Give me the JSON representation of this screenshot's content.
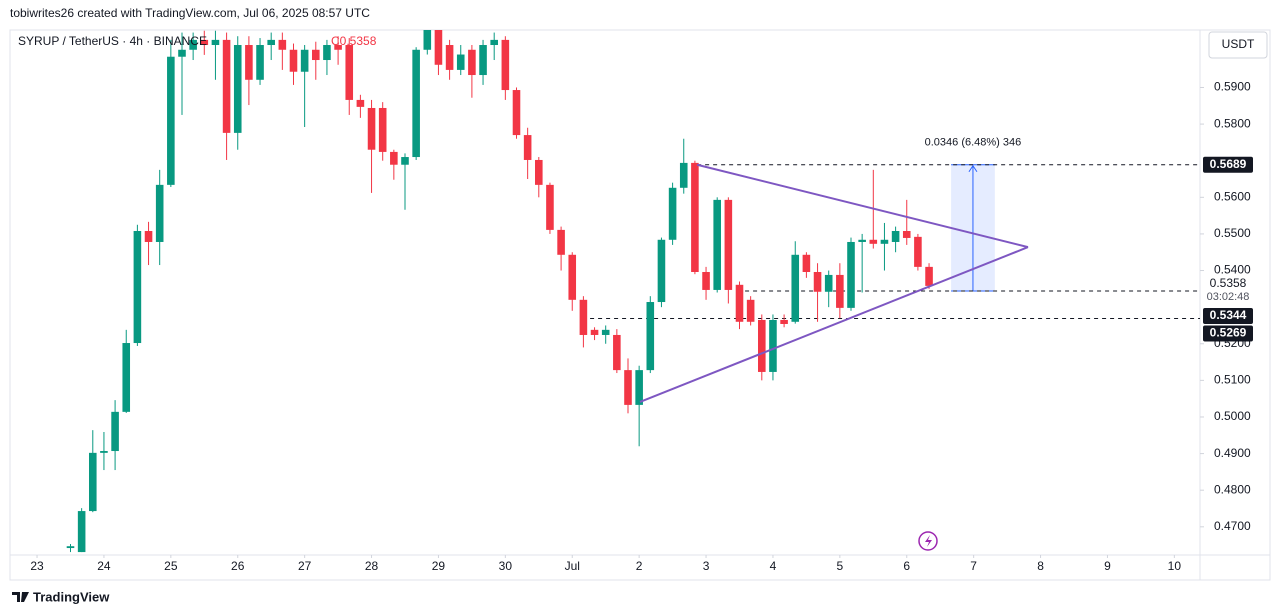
{
  "header": "tobiwrites26 created with TradingView.com, Jul 06, 2025 08:57 UTC",
  "footer": "TradingView",
  "chart_data": {
    "type": "candlestick",
    "title": "SYRUP / TetherUS · 4h · BINANCE",
    "last_close_text": "C0.5358",
    "currency": "USDT",
    "up_color": "#089981",
    "down_color": "#f23645",
    "grid": false,
    "x": [
      12,
      16,
      20,
      24,
      28,
      32,
      36,
      40,
      44,
      48,
      52,
      56,
      60,
      64,
      68,
      72,
      76,
      80,
      84,
      88,
      92,
      96,
      100,
      104,
      108,
      112,
      116,
      120,
      124,
      128,
      132,
      136,
      140,
      144,
      148,
      152,
      156,
      160,
      164,
      168,
      172,
      176,
      180,
      184,
      188,
      192,
      196,
      200,
      204,
      208,
      212,
      216,
      220,
      224,
      228,
      232,
      236,
      240,
      244,
      248,
      252,
      256,
      260,
      264,
      268,
      272,
      276,
      280,
      284,
      288,
      292,
      296,
      300,
      304,
      308,
      312,
      316,
      320
    ],
    "open": [
      0.4642,
      0.4631,
      0.4743,
      0.4902,
      0.4907,
      0.5014,
      0.5202,
      0.5508,
      0.5478,
      0.5634,
      0.5984,
      0.6003,
      0.603,
      0.6016,
      0.603,
      0.5776,
      0.6016,
      0.5921,
      0.6016,
      0.603,
      0.6003,
      0.5943,
      0.6003,
      0.5975,
      0.6016,
      0.6016,
      0.5866,
      0.5844,
      0.5844,
      0.5724,
      0.5689,
      0.571,
      0.6003,
      0.6057,
      0.6016,
      0.5948,
      0.6003,
      0.5934,
      0.6016,
      0.603,
      0.5893,
      0.577,
      0.5702,
      0.5634,
      0.5511,
      0.5443,
      0.532,
      0.5238,
      0.5224,
      0.5224,
      0.5128,
      0.5033,
      0.5128,
      0.5314,
      0.5484,
      0.5626,
      0.5694,
      0.5396,
      0.5347,
      0.5593,
      0.5361,
      0.532,
      0.5265,
      0.5123,
      0.5265,
      0.526,
      0.5443,
      0.5396,
      0.5342,
      0.5388,
      0.5298,
      0.5478,
      0.5484,
      0.5473,
      0.5478,
      0.5508,
      0.5492,
      0.541
    ],
    "high": [
      0.4653,
      0.4751,
      0.4964,
      0.4959,
      0.5046,
      0.5238,
      0.5525,
      0.5533,
      0.5675,
      0.603,
      0.605,
      0.605,
      0.6055,
      0.6055,
      0.605,
      0.604,
      0.604,
      0.6035,
      0.605,
      0.605,
      0.602,
      0.6016,
      0.6025,
      0.603,
      0.604,
      0.6035,
      0.588,
      0.5866,
      0.586,
      0.573,
      0.572,
      0.601,
      0.606,
      0.606,
      0.603,
      0.6016,
      0.6016,
      0.603,
      0.605,
      0.604,
      0.59,
      0.579,
      0.571,
      0.564,
      0.552,
      0.545,
      0.533,
      0.5245,
      0.525,
      0.524,
      0.516,
      0.514,
      0.533,
      0.549,
      0.564,
      0.576,
      0.57,
      0.541,
      0.56,
      0.56,
      0.537,
      0.533,
      0.528,
      0.528,
      0.528,
      0.548,
      0.545,
      0.542,
      0.54,
      0.542,
      0.549,
      0.55,
      0.5675,
      0.553,
      0.552,
      0.5593,
      0.55,
      0.542
    ],
    "low": [
      0.4631,
      0.4631,
      0.474,
      0.4855,
      0.4855,
      0.5011,
      0.5194,
      0.5415,
      0.5415,
      0.5628,
      0.5825,
      0.5975,
      0.5989,
      0.5921,
      0.5702,
      0.573,
      0.5852,
      0.5907,
      0.5975,
      0.5948,
      0.5907,
      0.5792,
      0.5921,
      0.5934,
      0.5962,
      0.5825,
      0.5817,
      0.5612,
      0.57,
      0.5648,
      0.5566,
      0.5702,
      0.599,
      0.5934,
      0.5921,
      0.5934,
      0.5872,
      0.5907,
      0.5975,
      0.5866,
      0.576,
      0.565,
      0.56,
      0.55,
      0.54,
      0.529,
      0.519,
      0.521,
      0.52,
      0.512,
      0.501,
      0.492,
      0.512,
      0.53,
      0.547,
      0.561,
      0.539,
      0.532,
      0.534,
      0.531,
      0.524,
      0.525,
      0.51,
      0.51,
      0.5245,
      0.5255,
      0.538,
      0.526,
      0.53,
      0.527,
      0.529,
      0.534,
      0.546,
      0.54,
      0.545,
      0.547,
      0.54,
      0.535
    ],
    "close": [
      0.4647,
      0.4743,
      0.4902,
      0.4907,
      0.5014,
      0.5202,
      0.5508,
      0.5478,
      0.5634,
      0.5984,
      0.6003,
      0.603,
      0.6016,
      0.603,
      0.5776,
      0.6016,
      0.5921,
      0.6016,
      0.603,
      0.6003,
      0.5943,
      0.6003,
      0.5975,
      0.6016,
      0.6003,
      0.5866,
      0.5847,
      0.573,
      0.5724,
      0.5689,
      0.571,
      0.6003,
      0.6057,
      0.5962,
      0.5948,
      0.599,
      0.5934,
      0.6016,
      0.603,
      0.5893,
      0.577,
      0.5702,
      0.5634,
      0.5511,
      0.5443,
      0.532,
      0.5224,
      0.5224,
      0.5238,
      0.5128,
      0.5033,
      0.5128,
      0.5314,
      0.5484,
      0.5626,
      0.5694,
      0.5396,
      0.5347,
      0.5593,
      0.5347,
      0.526,
      0.526,
      0.5123,
      0.5265,
      0.5254,
      0.5443,
      0.5396,
      0.5342,
      0.5388,
      0.5298,
      0.5478,
      0.5484,
      0.5473,
      0.5484,
      0.5508,
      0.5489,
      0.541,
      0.5358
    ],
    "xlim": [
      -9.7,
      417.2
    ],
    "ylim": [
      0.4623,
      0.6057
    ],
    "xticks": [
      {
        "value": 0,
        "label": "23"
      },
      {
        "value": 24,
        "label": "24"
      },
      {
        "value": 48,
        "label": "25"
      },
      {
        "value": 72,
        "label": "26"
      },
      {
        "value": 96,
        "label": "27"
      },
      {
        "value": 120,
        "label": "28"
      },
      {
        "value": 144,
        "label": "29"
      },
      {
        "value": 168,
        "label": "30"
      },
      {
        "value": 192,
        "label": "Jul"
      },
      {
        "value": 216,
        "label": "2"
      },
      {
        "value": 240,
        "label": "3"
      },
      {
        "value": 264,
        "label": "4"
      },
      {
        "value": 288,
        "label": "5"
      },
      {
        "value": 312,
        "label": "6"
      },
      {
        "value": 336,
        "label": "7"
      },
      {
        "value": 360,
        "label": "8"
      },
      {
        "value": 384,
        "label": "9"
      },
      {
        "value": 408,
        "label": "10"
      }
    ],
    "yticks": [
      {
        "value": 0.47,
        "label": "0.4700"
      },
      {
        "value": 0.48,
        "label": "0.4800"
      },
      {
        "value": 0.49,
        "label": "0.4900"
      },
      {
        "value": 0.5,
        "label": "0.5000"
      },
      {
        "value": 0.51,
        "label": "0.5100"
      },
      {
        "value": 0.52,
        "label": "0.5200"
      },
      {
        "value": 0.54,
        "label": "0.5400"
      },
      {
        "value": 0.55,
        "label": "0.5500"
      },
      {
        "value": 0.56,
        "label": "0.5600"
      },
      {
        "value": 0.58,
        "label": "0.5800"
      },
      {
        "value": 0.59,
        "label": "0.5900"
      }
    ],
    "trendline_color": "#7e57c2",
    "trendlines": [
      {
        "x": [
          236.8,
          355.5
        ],
        "y": [
          0.5689,
          0.5464
        ]
      },
      {
        "x": [
          216.3,
          355.5
        ],
        "y": [
          0.5041,
          0.5464
        ]
      }
    ],
    "levels": [
      {
        "value": 0.5689,
        "from": 236.8
      },
      {
        "value": 0.5344,
        "from": 254
      },
      {
        "value": 0.5269,
        "from": 198.4
      }
    ],
    "price_labels": [
      {
        "value": 0.5689,
        "label": "0.5689",
        "boxed": true
      },
      {
        "value": 0.5358,
        "label": "0.5358",
        "boxed": false
      },
      {
        "value": 0.5344,
        "label": "0.5344",
        "boxed": true
      },
      {
        "value": 0.5269,
        "label": "0.5269",
        "boxed": true
      }
    ],
    "countdown": "03:02:48",
    "measure": {
      "x": [
        327.9,
        343.6
      ],
      "y": [
        0.5344,
        0.5689
      ],
      "label": "0.0346 (6.48%) 346",
      "color": "#2962ff"
    }
  }
}
